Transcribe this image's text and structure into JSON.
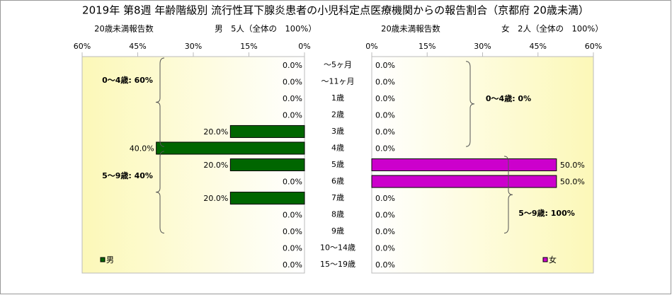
{
  "chart_data": {
    "type": "bar",
    "title": "2019年 第8週 年齢階級別 流行性耳下腺炎患者の小児科定点医療機関からの報告割合（京都府 20歳未満）",
    "categories": [
      "～5ヶ月",
      "～11ヶ月",
      "1歳",
      "2歳",
      "3歳",
      "4歳",
      "5歳",
      "6歳",
      "7歳",
      "8歳",
      "9歳",
      "10～14歳",
      "15～19歳"
    ],
    "series": [
      {
        "name": "男",
        "color": "#006600",
        "axis_label": "20歳未満報告数",
        "subtitle": "男　5人（全体の　100%）",
        "values": [
          0,
          0,
          0,
          0,
          20,
          40,
          20,
          0,
          20,
          0,
          0,
          0,
          0
        ],
        "value_labels": [
          "0.0%",
          "0.0%",
          "0.0%",
          "0.0%",
          "20.0%",
          "40.0%",
          "20.0%",
          "0.0%",
          "20.0%",
          "0.0%",
          "0.0%",
          "0.0%",
          "0.0%"
        ],
        "xlim": [
          60,
          0
        ],
        "xticks": [
          {
            "value": 60,
            "label": "60%"
          },
          {
            "value": 45,
            "label": "45%"
          },
          {
            "value": 30,
            "label": "30%"
          },
          {
            "value": 15,
            "label": "15%"
          },
          {
            "value": 0,
            "label": "0%"
          }
        ],
        "annotations": [
          "0～4歳: 60%",
          "5～9歳: 40%"
        ]
      },
      {
        "name": "女",
        "color": "#cc00cc",
        "axis_label": "20歳未満報告数",
        "subtitle": "女　2人（全体の　100%）",
        "values": [
          0,
          0,
          0,
          0,
          0,
          0,
          50,
          50,
          0,
          0,
          0,
          0,
          0
        ],
        "value_labels": [
          "0.0%",
          "0.0%",
          "0.0%",
          "0.0%",
          "0.0%",
          "0.0%",
          "50.0%",
          "50.0%",
          "0.0%",
          "0.0%",
          "0.0%",
          "0.0%",
          "0.0%"
        ],
        "xlim": [
          0,
          60
        ],
        "xticks": [
          {
            "value": 0,
            "label": "0%"
          },
          {
            "value": 15,
            "label": "15%"
          },
          {
            "value": 30,
            "label": "30%"
          },
          {
            "value": 45,
            "label": "45%"
          },
          {
            "value": 60,
            "label": "60%"
          }
        ],
        "annotations": [
          "0～4歳: 0%",
          "5～9歳: 100%"
        ]
      }
    ]
  }
}
